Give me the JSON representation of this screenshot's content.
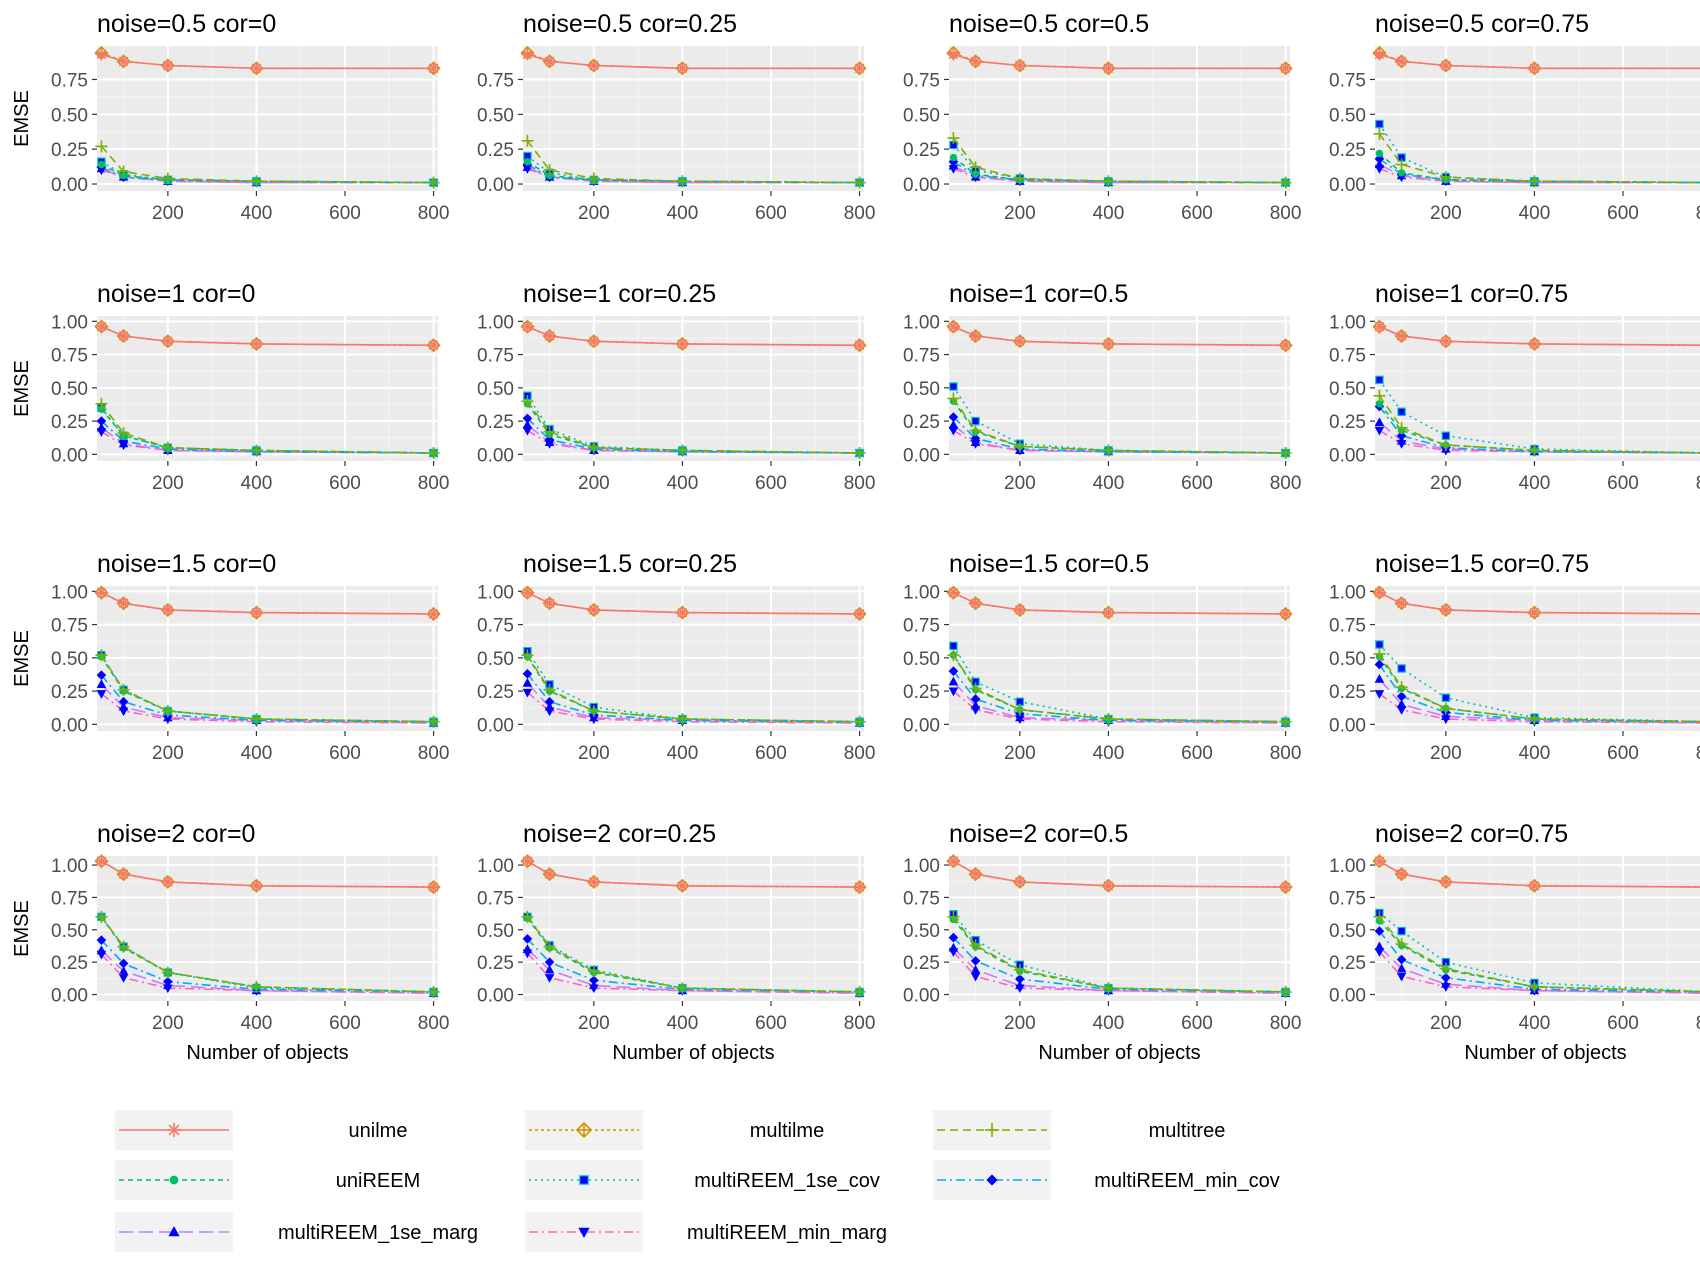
{
  "chart_data": {
    "type": "line",
    "facet_rows": [
      "0.5",
      "1",
      "1.5",
      "2"
    ],
    "facet_cols": [
      "0",
      "0.25",
      "0.5",
      "0.75"
    ],
    "x": [
      50,
      100,
      200,
      400,
      800
    ],
    "xticks": [
      "200",
      "400",
      "600",
      "800"
    ],
    "xlim": [
      40,
      810
    ],
    "xlabel": "Number of objects",
    "ylabel": "EMSE",
    "yticks": [
      [
        "0.00",
        "0.25",
        "0.50",
        "0.75"
      ],
      [
        "0.00",
        "0.25",
        "0.50",
        "0.75",
        "1.00"
      ],
      [
        "0.00",
        "0.25",
        "0.50",
        "0.75",
        "1.00"
      ],
      [
        "0.00",
        "0.25",
        "0.50",
        "0.75",
        "1.00"
      ]
    ],
    "ylim": [
      [
        -0.05,
        0.99
      ],
      [
        -0.05,
        1.04
      ],
      [
        -0.05,
        1.04
      ],
      [
        -0.05,
        1.07
      ]
    ],
    "legend_position": "bottom",
    "series": [
      {
        "name": "unilme",
        "color": "#F8766D",
        "dash": "",
        "shape": "star"
      },
      {
        "name": "multilme",
        "color": "#CD9600",
        "dash": "3,3",
        "shape": "diamondplus"
      },
      {
        "name": "multitree",
        "color": "#7CAE00",
        "dash": "8,5",
        "shape": "plus"
      },
      {
        "name": "uniREEM",
        "color": "#00BE67",
        "dash": "5,4",
        "shape": "circle"
      },
      {
        "name": "multiREEM_1se_cov",
        "color": "#00BFC4",
        "dash": "2,4",
        "shape": "square"
      },
      {
        "name": "multiREEM_min_cov",
        "color": "#00A9FF",
        "dash": "9,4,2,4",
        "shape": "diamond"
      },
      {
        "name": "multiREEM_1se_marg",
        "color": "#C77CFF",
        "dash": "14,6",
        "shape": "triangle"
      },
      {
        "name": "multiREEM_min_marg",
        "color": "#FF61CC",
        "dash": "9,4,2,4",
        "shape": "invtriangle"
      }
    ],
    "panels": [
      {
        "title": "noise=0.5 cor=0",
        "values": [
          [
            0.93,
            0.88,
            0.85,
            0.83,
            0.83
          ],
          [
            0.94,
            0.88,
            0.85,
            0.83,
            0.83
          ],
          [
            0.27,
            0.09,
            0.04,
            0.02,
            0.01
          ],
          [
            0.14,
            0.06,
            0.03,
            0.02,
            0.01
          ],
          [
            0.16,
            0.07,
            0.03,
            0.02,
            0.01
          ],
          [
            0.12,
            0.05,
            0.03,
            0.02,
            0.01
          ],
          [
            0.11,
            0.05,
            0.02,
            0.01,
            0.01
          ],
          [
            0.1,
            0.05,
            0.02,
            0.01,
            0.01
          ]
        ]
      },
      {
        "title": "noise=0.5 cor=0.25",
        "values": [
          [
            0.93,
            0.88,
            0.85,
            0.83,
            0.83
          ],
          [
            0.94,
            0.88,
            0.85,
            0.83,
            0.83
          ],
          [
            0.31,
            0.1,
            0.04,
            0.02,
            0.01
          ],
          [
            0.16,
            0.06,
            0.03,
            0.02,
            0.01
          ],
          [
            0.2,
            0.08,
            0.03,
            0.02,
            0.01
          ],
          [
            0.14,
            0.05,
            0.03,
            0.02,
            0.01
          ],
          [
            0.12,
            0.05,
            0.02,
            0.01,
            0.01
          ],
          [
            0.11,
            0.05,
            0.02,
            0.01,
            0.01
          ]
        ]
      },
      {
        "title": "noise=0.5 cor=0.5",
        "values": [
          [
            0.93,
            0.88,
            0.85,
            0.83,
            0.83
          ],
          [
            0.94,
            0.88,
            0.85,
            0.83,
            0.83
          ],
          [
            0.33,
            0.12,
            0.04,
            0.02,
            0.01
          ],
          [
            0.19,
            0.07,
            0.03,
            0.02,
            0.01
          ],
          [
            0.28,
            0.1,
            0.04,
            0.02,
            0.01
          ],
          [
            0.16,
            0.06,
            0.03,
            0.02,
            0.01
          ],
          [
            0.13,
            0.05,
            0.02,
            0.01,
            0.01
          ],
          [
            0.11,
            0.05,
            0.02,
            0.01,
            0.01
          ]
        ]
      },
      {
        "title": "noise=0.5 cor=0.75",
        "values": [
          [
            0.93,
            0.88,
            0.85,
            0.83,
            0.83
          ],
          [
            0.94,
            0.88,
            0.85,
            0.83,
            0.83
          ],
          [
            0.36,
            0.14,
            0.05,
            0.02,
            0.01
          ],
          [
            0.22,
            0.08,
            0.03,
            0.02,
            0.01
          ],
          [
            0.43,
            0.19,
            0.05,
            0.02,
            0.01
          ],
          [
            0.18,
            0.07,
            0.03,
            0.02,
            0.01
          ],
          [
            0.14,
            0.06,
            0.02,
            0.01,
            0.01
          ],
          [
            0.11,
            0.05,
            0.02,
            0.01,
            0.01
          ]
        ]
      },
      {
        "title": "noise=1 cor=0",
        "values": [
          [
            0.96,
            0.89,
            0.85,
            0.83,
            0.82
          ],
          [
            0.96,
            0.89,
            0.85,
            0.83,
            0.82
          ],
          [
            0.38,
            0.16,
            0.05,
            0.03,
            0.01
          ],
          [
            0.34,
            0.14,
            0.05,
            0.03,
            0.01
          ],
          [
            0.35,
            0.14,
            0.05,
            0.03,
            0.01
          ],
          [
            0.25,
            0.1,
            0.04,
            0.02,
            0.01
          ],
          [
            0.2,
            0.08,
            0.03,
            0.02,
            0.01
          ],
          [
            0.17,
            0.07,
            0.03,
            0.02,
            0.01
          ]
        ]
      },
      {
        "title": "noise=1 cor=0.25",
        "values": [
          [
            0.96,
            0.89,
            0.85,
            0.83,
            0.82
          ],
          [
            0.96,
            0.89,
            0.85,
            0.83,
            0.82
          ],
          [
            0.4,
            0.17,
            0.05,
            0.03,
            0.01
          ],
          [
            0.38,
            0.15,
            0.05,
            0.03,
            0.01
          ],
          [
            0.44,
            0.19,
            0.06,
            0.03,
            0.01
          ],
          [
            0.27,
            0.11,
            0.04,
            0.02,
            0.01
          ],
          [
            0.22,
            0.09,
            0.03,
            0.02,
            0.01
          ],
          [
            0.18,
            0.08,
            0.03,
            0.02,
            0.01
          ]
        ]
      },
      {
        "title": "noise=1 cor=0.5",
        "values": [
          [
            0.96,
            0.89,
            0.85,
            0.83,
            0.82
          ],
          [
            0.96,
            0.89,
            0.85,
            0.83,
            0.82
          ],
          [
            0.42,
            0.18,
            0.06,
            0.03,
            0.01
          ],
          [
            0.4,
            0.17,
            0.06,
            0.03,
            0.01
          ],
          [
            0.51,
            0.25,
            0.08,
            0.03,
            0.01
          ],
          [
            0.28,
            0.12,
            0.04,
            0.02,
            0.01
          ],
          [
            0.22,
            0.09,
            0.03,
            0.02,
            0.01
          ],
          [
            0.18,
            0.08,
            0.03,
            0.02,
            0.01
          ]
        ]
      },
      {
        "title": "noise=1 cor=0.75",
        "values": [
          [
            0.96,
            0.89,
            0.85,
            0.83,
            0.82
          ],
          [
            0.96,
            0.89,
            0.85,
            0.83,
            0.82
          ],
          [
            0.44,
            0.2,
            0.07,
            0.03,
            0.01
          ],
          [
            0.38,
            0.18,
            0.07,
            0.03,
            0.01
          ],
          [
            0.56,
            0.32,
            0.14,
            0.04,
            0.01
          ],
          [
            0.36,
            0.14,
            0.05,
            0.02,
            0.01
          ],
          [
            0.24,
            0.1,
            0.04,
            0.02,
            0.01
          ],
          [
            0.18,
            0.08,
            0.03,
            0.02,
            0.01
          ]
        ]
      },
      {
        "title": "noise=1.5 cor=0",
        "values": [
          [
            0.99,
            0.91,
            0.86,
            0.84,
            0.83
          ],
          [
            0.99,
            0.91,
            0.86,
            0.84,
            0.83
          ],
          [
            0.52,
            0.26,
            0.1,
            0.04,
            0.02
          ],
          [
            0.51,
            0.25,
            0.1,
            0.04,
            0.02
          ],
          [
            0.52,
            0.26,
            0.1,
            0.04,
            0.02
          ],
          [
            0.37,
            0.17,
            0.07,
            0.03,
            0.02
          ],
          [
            0.3,
            0.13,
            0.05,
            0.03,
            0.01
          ],
          [
            0.23,
            0.1,
            0.04,
            0.02,
            0.01
          ]
        ]
      },
      {
        "title": "noise=1.5 cor=0.25",
        "values": [
          [
            0.99,
            0.91,
            0.86,
            0.84,
            0.83
          ],
          [
            0.99,
            0.91,
            0.86,
            0.84,
            0.83
          ],
          [
            0.52,
            0.26,
            0.1,
            0.04,
            0.02
          ],
          [
            0.51,
            0.25,
            0.1,
            0.04,
            0.02
          ],
          [
            0.55,
            0.3,
            0.13,
            0.04,
            0.02
          ],
          [
            0.38,
            0.17,
            0.07,
            0.03,
            0.02
          ],
          [
            0.31,
            0.13,
            0.05,
            0.03,
            0.01
          ],
          [
            0.24,
            0.1,
            0.04,
            0.02,
            0.01
          ]
        ]
      },
      {
        "title": "noise=1.5 cor=0.5",
        "values": [
          [
            0.99,
            0.91,
            0.86,
            0.84,
            0.83
          ],
          [
            0.99,
            0.91,
            0.86,
            0.84,
            0.83
          ],
          [
            0.52,
            0.27,
            0.11,
            0.04,
            0.02
          ],
          [
            0.52,
            0.26,
            0.11,
            0.04,
            0.02
          ],
          [
            0.59,
            0.32,
            0.17,
            0.04,
            0.02
          ],
          [
            0.4,
            0.19,
            0.08,
            0.03,
            0.02
          ],
          [
            0.32,
            0.14,
            0.05,
            0.03,
            0.01
          ],
          [
            0.25,
            0.11,
            0.04,
            0.02,
            0.01
          ]
        ]
      },
      {
        "title": "noise=1.5 cor=0.75",
        "values": [
          [
            0.99,
            0.91,
            0.86,
            0.84,
            0.83
          ],
          [
            0.99,
            0.91,
            0.86,
            0.84,
            0.83
          ],
          [
            0.53,
            0.28,
            0.12,
            0.04,
            0.02
          ],
          [
            0.51,
            0.27,
            0.12,
            0.04,
            0.02
          ],
          [
            0.6,
            0.42,
            0.2,
            0.05,
            0.02
          ],
          [
            0.45,
            0.21,
            0.09,
            0.03,
            0.02
          ],
          [
            0.34,
            0.15,
            0.06,
            0.03,
            0.01
          ],
          [
            0.23,
            0.11,
            0.04,
            0.02,
            0.01
          ]
        ]
      },
      {
        "title": "noise=2 cor=0",
        "values": [
          [
            1.03,
            0.93,
            0.87,
            0.84,
            0.83
          ],
          [
            1.03,
            0.93,
            0.87,
            0.84,
            0.83
          ],
          [
            0.6,
            0.37,
            0.17,
            0.06,
            0.02
          ],
          [
            0.6,
            0.36,
            0.17,
            0.06,
            0.02
          ],
          [
            0.6,
            0.37,
            0.17,
            0.05,
            0.02
          ],
          [
            0.42,
            0.24,
            0.1,
            0.04,
            0.02
          ],
          [
            0.34,
            0.18,
            0.07,
            0.03,
            0.01
          ],
          [
            0.31,
            0.13,
            0.05,
            0.03,
            0.01
          ]
        ]
      },
      {
        "title": "noise=2 cor=0.25",
        "values": [
          [
            1.03,
            0.93,
            0.87,
            0.84,
            0.83
          ],
          [
            1.03,
            0.93,
            0.87,
            0.84,
            0.83
          ],
          [
            0.6,
            0.37,
            0.18,
            0.05,
            0.02
          ],
          [
            0.59,
            0.36,
            0.17,
            0.05,
            0.02
          ],
          [
            0.6,
            0.38,
            0.19,
            0.05,
            0.02
          ],
          [
            0.43,
            0.25,
            0.11,
            0.04,
            0.02
          ],
          [
            0.35,
            0.19,
            0.07,
            0.03,
            0.01
          ],
          [
            0.32,
            0.13,
            0.05,
            0.03,
            0.01
          ]
        ]
      },
      {
        "title": "noise=2 cor=0.5",
        "values": [
          [
            1.03,
            0.93,
            0.87,
            0.84,
            0.83
          ],
          [
            1.03,
            0.93,
            0.87,
            0.84,
            0.83
          ],
          [
            0.6,
            0.38,
            0.19,
            0.05,
            0.02
          ],
          [
            0.58,
            0.37,
            0.18,
            0.05,
            0.02
          ],
          [
            0.62,
            0.42,
            0.23,
            0.05,
            0.02
          ],
          [
            0.44,
            0.26,
            0.12,
            0.04,
            0.02
          ],
          [
            0.36,
            0.19,
            0.07,
            0.03,
            0.01
          ],
          [
            0.33,
            0.14,
            0.05,
            0.03,
            0.01
          ]
        ]
      },
      {
        "title": "noise=2 cor=0.75",
        "values": [
          [
            1.03,
            0.93,
            0.87,
            0.84,
            0.83
          ],
          [
            1.03,
            0.93,
            0.87,
            0.84,
            0.83
          ],
          [
            0.6,
            0.39,
            0.2,
            0.06,
            0.02
          ],
          [
            0.57,
            0.38,
            0.19,
            0.06,
            0.02
          ],
          [
            0.63,
            0.49,
            0.25,
            0.09,
            0.02
          ],
          [
            0.49,
            0.27,
            0.13,
            0.04,
            0.02
          ],
          [
            0.37,
            0.2,
            0.08,
            0.03,
            0.01
          ],
          [
            0.33,
            0.14,
            0.06,
            0.03,
            0.01
          ]
        ]
      }
    ]
  }
}
